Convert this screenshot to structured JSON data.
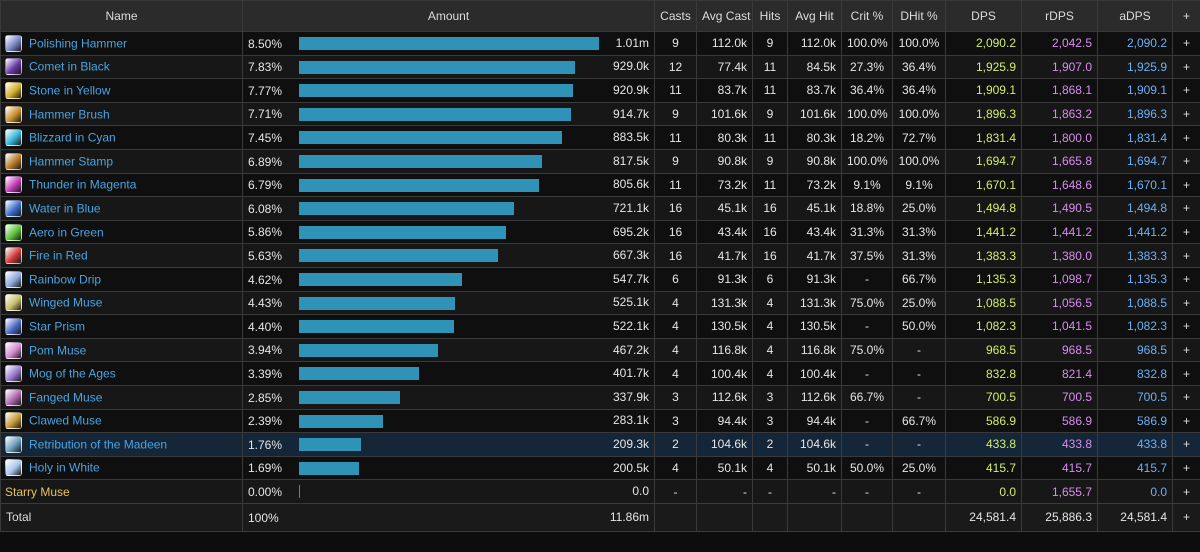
{
  "headers": {
    "name": "Name",
    "amount": "Amount",
    "casts": "Casts",
    "avg_cast": "Avg Cast",
    "hits": "Hits",
    "avg_hit": "Avg Hit",
    "crit": "Crit %",
    "dhit": "DHit %",
    "dps": "DPS",
    "rdps": "rDPS",
    "adps": "aDPS",
    "plus": "+"
  },
  "rows": [
    {
      "name": "Polishing Hammer",
      "icon": "polishing-hammer-icon",
      "color": "#7a86c9",
      "pct": "8.50%",
      "bar": 1.0,
      "amount": "1.01m",
      "casts": "9",
      "avg_cast": "112.0k",
      "hits": "9",
      "avg_hit": "112.0k",
      "crit": "100.0%",
      "dhit": "100.0%",
      "dps": "2,090.2",
      "rdps": "2,042.5",
      "adps": "2,090.2"
    },
    {
      "name": "Comet in Black",
      "icon": "comet-in-black-icon",
      "color": "#6a3aa8",
      "pct": "7.83%",
      "bar": 0.921,
      "amount": "929.0k",
      "casts": "12",
      "avg_cast": "77.4k",
      "hits": "11",
      "avg_hit": "84.5k",
      "crit": "27.3%",
      "dhit": "36.4%",
      "dps": "1,925.9",
      "rdps": "1,907.0",
      "adps": "1,925.9"
    },
    {
      "name": "Stone in Yellow",
      "icon": "stone-in-yellow-icon",
      "color": "#d4b02a",
      "pct": "7.77%",
      "bar": 0.914,
      "amount": "920.9k",
      "casts": "11",
      "avg_cast": "83.7k",
      "hits": "11",
      "avg_hit": "83.7k",
      "crit": "36.4%",
      "dhit": "36.4%",
      "dps": "1,909.1",
      "rdps": "1,868.1",
      "adps": "1,909.1"
    },
    {
      "name": "Hammer Brush",
      "icon": "hammer-brush-icon",
      "color": "#c9902e",
      "pct": "7.71%",
      "bar": 0.907,
      "amount": "914.7k",
      "casts": "9",
      "avg_cast": "101.6k",
      "hits": "9",
      "avg_hit": "101.6k",
      "crit": "100.0%",
      "dhit": "100.0%",
      "dps": "1,896.3",
      "rdps": "1,863.2",
      "adps": "1,896.3"
    },
    {
      "name": "Blizzard in Cyan",
      "icon": "blizzard-in-cyan-icon",
      "color": "#35b6d6",
      "pct": "7.45%",
      "bar": 0.876,
      "amount": "883.5k",
      "casts": "11",
      "avg_cast": "80.3k",
      "hits": "11",
      "avg_hit": "80.3k",
      "crit": "18.2%",
      "dhit": "72.7%",
      "dps": "1,831.4",
      "rdps": "1,800.0",
      "adps": "1,831.4"
    },
    {
      "name": "Hammer Stamp",
      "icon": "hammer-stamp-icon",
      "color": "#b87a2a",
      "pct": "6.89%",
      "bar": 0.811,
      "amount": "817.5k",
      "casts": "9",
      "avg_cast": "90.8k",
      "hits": "9",
      "avg_hit": "90.8k",
      "crit": "100.0%",
      "dhit": "100.0%",
      "dps": "1,694.7",
      "rdps": "1,665.8",
      "adps": "1,694.7"
    },
    {
      "name": "Thunder in Magenta",
      "icon": "thunder-in-magenta-icon",
      "color": "#c23cb8",
      "pct": "6.79%",
      "bar": 0.799,
      "amount": "805.6k",
      "casts": "11",
      "avg_cast": "73.2k",
      "hits": "11",
      "avg_hit": "73.2k",
      "crit": "9.1%",
      "dhit": "9.1%",
      "dps": "1,670.1",
      "rdps": "1,648.6",
      "adps": "1,670.1"
    },
    {
      "name": "Water in Blue",
      "icon": "water-in-blue-icon",
      "color": "#3c6fd0",
      "pct": "6.08%",
      "bar": 0.715,
      "amount": "721.1k",
      "casts": "16",
      "avg_cast": "45.1k",
      "hits": "16",
      "avg_hit": "45.1k",
      "crit": "18.8%",
      "dhit": "25.0%",
      "dps": "1,494.8",
      "rdps": "1,490.5",
      "adps": "1,494.8"
    },
    {
      "name": "Aero in Green",
      "icon": "aero-in-green-icon",
      "color": "#5cc43a",
      "pct": "5.86%",
      "bar": 0.689,
      "amount": "695.2k",
      "casts": "16",
      "avg_cast": "43.4k",
      "hits": "16",
      "avg_hit": "43.4k",
      "crit": "31.3%",
      "dhit": "31.3%",
      "dps": "1,441.2",
      "rdps": "1,441.2",
      "adps": "1,441.2"
    },
    {
      "name": "Fire in Red",
      "icon": "fire-in-red-icon",
      "color": "#d23a3a",
      "pct": "5.63%",
      "bar": 0.662,
      "amount": "667.3k",
      "casts": "16",
      "avg_cast": "41.7k",
      "hits": "16",
      "avg_hit": "41.7k",
      "crit": "37.5%",
      "dhit": "31.3%",
      "dps": "1,383.3",
      "rdps": "1,380.0",
      "adps": "1,383.3"
    },
    {
      "name": "Rainbow Drip",
      "icon": "rainbow-drip-icon",
      "color": "#8fa8e0",
      "pct": "4.62%",
      "bar": 0.543,
      "amount": "547.7k",
      "casts": "6",
      "avg_cast": "91.3k",
      "hits": "6",
      "avg_hit": "91.3k",
      "crit": "-",
      "dhit": "66.7%",
      "dps": "1,135.3",
      "rdps": "1,098.7",
      "adps": "1,135.3"
    },
    {
      "name": "Winged Muse",
      "icon": "winged-muse-icon",
      "color": "#c8c06a",
      "pct": "4.43%",
      "bar": 0.521,
      "amount": "525.1k",
      "casts": "4",
      "avg_cast": "131.3k",
      "hits": "4",
      "avg_hit": "131.3k",
      "crit": "75.0%",
      "dhit": "25.0%",
      "dps": "1,088.5",
      "rdps": "1,056.5",
      "adps": "1,088.5"
    },
    {
      "name": "Star Prism",
      "icon": "star-prism-icon",
      "color": "#4a6ac8",
      "pct": "4.40%",
      "bar": 0.518,
      "amount": "522.1k",
      "casts": "4",
      "avg_cast": "130.5k",
      "hits": "4",
      "avg_hit": "130.5k",
      "crit": "-",
      "dhit": "50.0%",
      "dps": "1,082.3",
      "rdps": "1,041.5",
      "adps": "1,082.3"
    },
    {
      "name": "Pom Muse",
      "icon": "pom-muse-icon",
      "color": "#d68ad0",
      "pct": "3.94%",
      "bar": 0.464,
      "amount": "467.2k",
      "casts": "4",
      "avg_cast": "116.8k",
      "hits": "4",
      "avg_hit": "116.8k",
      "crit": "75.0%",
      "dhit": "-",
      "dps": "968.5",
      "rdps": "968.5",
      "adps": "968.5"
    },
    {
      "name": "Mog of the Ages",
      "icon": "mog-of-the-ages-icon",
      "color": "#9a7ad0",
      "pct": "3.39%",
      "bar": 0.399,
      "amount": "401.7k",
      "casts": "4",
      "avg_cast": "100.4k",
      "hits": "4",
      "avg_hit": "100.4k",
      "crit": "-",
      "dhit": "-",
      "dps": "832.8",
      "rdps": "821.4",
      "adps": "832.8"
    },
    {
      "name": "Fanged Muse",
      "icon": "fanged-muse-icon",
      "color": "#b06ab0",
      "pct": "2.85%",
      "bar": 0.335,
      "amount": "337.9k",
      "casts": "3",
      "avg_cast": "112.6k",
      "hits": "3",
      "avg_hit": "112.6k",
      "crit": "66.7%",
      "dhit": "-",
      "dps": "700.5",
      "rdps": "700.5",
      "adps": "700.5"
    },
    {
      "name": "Clawed Muse",
      "icon": "clawed-muse-icon",
      "color": "#c89a3a",
      "pct": "2.39%",
      "bar": 0.281,
      "amount": "283.1k",
      "casts": "3",
      "avg_cast": "94.4k",
      "hits": "3",
      "avg_hit": "94.4k",
      "crit": "-",
      "dhit": "66.7%",
      "dps": "586.9",
      "rdps": "586.9",
      "adps": "586.9"
    },
    {
      "name": "Retribution of the Madeen",
      "icon": "retribution-of-the-madeen-icon",
      "color": "#6aa0c0",
      "pct": "1.76%",
      "bar": 0.207,
      "amount": "209.3k",
      "casts": "2",
      "avg_cast": "104.6k",
      "hits": "2",
      "avg_hit": "104.6k",
      "crit": "-",
      "dhit": "-",
      "dps": "433.8",
      "rdps": "433.8",
      "adps": "433.8",
      "highlight": true
    },
    {
      "name": "Holy in White",
      "icon": "holy-in-white-icon",
      "color": "#a8c8ee",
      "pct": "1.69%",
      "bar": 0.199,
      "amount": "200.5k",
      "casts": "4",
      "avg_cast": "50.1k",
      "hits": "4",
      "avg_hit": "50.1k",
      "crit": "50.0%",
      "dhit": "25.0%",
      "dps": "415.7",
      "rdps": "415.7",
      "adps": "415.7"
    },
    {
      "name": "Starry Muse",
      "icon": "",
      "color": "",
      "pct": "0.00%",
      "bar": 0.004,
      "amount": "0.0",
      "casts": "-",
      "avg_cast": "-",
      "hits": "-",
      "avg_hit": "-",
      "crit": "-",
      "dhit": "-",
      "dps": "0.0",
      "rdps": "1,655.7",
      "adps": "0.0",
      "gold": true
    }
  ],
  "total": {
    "label": "Total",
    "pct": "100%",
    "amount": "11.86m",
    "dps": "24,581.4",
    "rdps": "25,886.3",
    "adps": "24,581.4"
  },
  "plus_label": "+"
}
